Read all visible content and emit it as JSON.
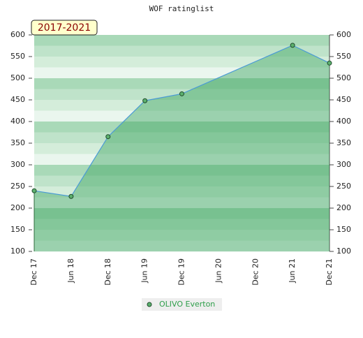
{
  "chart_data": {
    "type": "area",
    "title": "WOF ratinglist",
    "annotation": "2017-2021",
    "categories": [
      "Dec 17",
      "Jun 18",
      "Dec 18",
      "Jun 19",
      "Dec 19",
      "Jun 20",
      "Dec 20",
      "Jun 21",
      "Dec 21"
    ],
    "series": [
      {
        "name": "OLIVO Everton",
        "color": "#4a9ad6",
        "x": [
          "Dec 17",
          "Jun 18",
          "Dec 18",
          "Jun 19",
          "Dec 19",
          "Jun 21",
          "Dec 21"
        ],
        "values": [
          240,
          227,
          365,
          448,
          464,
          576,
          535
        ]
      }
    ],
    "ylim": [
      100,
      600
    ],
    "yticks": [
      100,
      150,
      200,
      250,
      300,
      350,
      400,
      450,
      500,
      550,
      600
    ],
    "y2lim": [
      100,
      600
    ],
    "y2ticks": [
      100,
      150,
      200,
      250,
      300,
      350,
      400,
      450,
      500,
      550,
      600
    ]
  }
}
